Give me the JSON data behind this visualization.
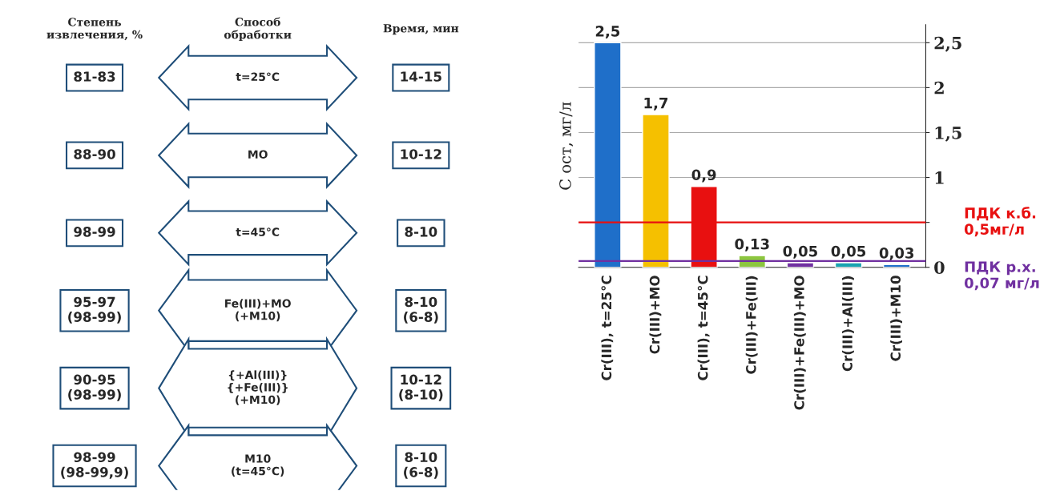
{
  "chart_data": [
    {
      "type": "other",
      "annotations": [
        "Степень\nизвлечения, %",
        "Способ\nобработки",
        "Время, мин",
        "81-83",
        "t=25°C",
        "14-15",
        "88-90",
        "МО",
        "10-12",
        "98-99",
        "t=45°C",
        "8-10",
        "95-97\n(98-99)",
        "Fe(III)+МО\n(+М10)",
        "8-10\n(6-8)",
        "90-95\n(98-99)",
        "{+Al(III)}\n{+Fe(III)}\n(+М10)",
        "10-12\n(8-10)",
        "98-99\n(98-99,9)",
        "М10\n(t=45°C)",
        "8-10\n(6-8)"
      ]
    },
    {
      "type": "bar",
      "ylabel": "С ост, мг/л",
      "categories": [
        "Cr(III), t=25°C",
        "Cr(III)+МО",
        "Cr(III), t=45°C",
        "Cr(III)+Fe(III)",
        "Cr(III)+Fe(III)+МО",
        "Cr(III)+Al(III)",
        "Cr(III)+М10"
      ],
      "values": [
        2.5,
        1.7,
        0.9,
        0.13,
        0.05,
        0.05,
        0.03
      ],
      "value_labels": [
        "2,5",
        "1,7",
        "0,9",
        "0,13",
        "0,05",
        "0,05",
        "0,03"
      ],
      "colors": [
        "#1f6fc9",
        "#f5c000",
        "#e81010",
        "#8cc63f",
        "#7030a0",
        "#1aa3b0",
        "#1f6fc9"
      ],
      "ylim": [
        0,
        2.7
      ],
      "yticks": [
        {
          "value": 0,
          "label": "0"
        },
        {
          "value": 0.5,
          "label": null
        },
        {
          "value": 1,
          "label": "1"
        },
        {
          "value": 1.5,
          "label": "1,5"
        },
        {
          "value": 2,
          "label": "2"
        },
        {
          "value": 2.5,
          "label": "2,5"
        }
      ],
      "grid": "y",
      "ref_lines": [
        {
          "axis": "y",
          "value": 0.5,
          "label": "ПДК к.б.\n0,5мг/л",
          "color": "#e81010"
        },
        {
          "axis": "y",
          "value": 0.07,
          "label": "ПДК р.х.\n0,07 мг/л",
          "color": "#7030a0"
        }
      ]
    }
  ]
}
